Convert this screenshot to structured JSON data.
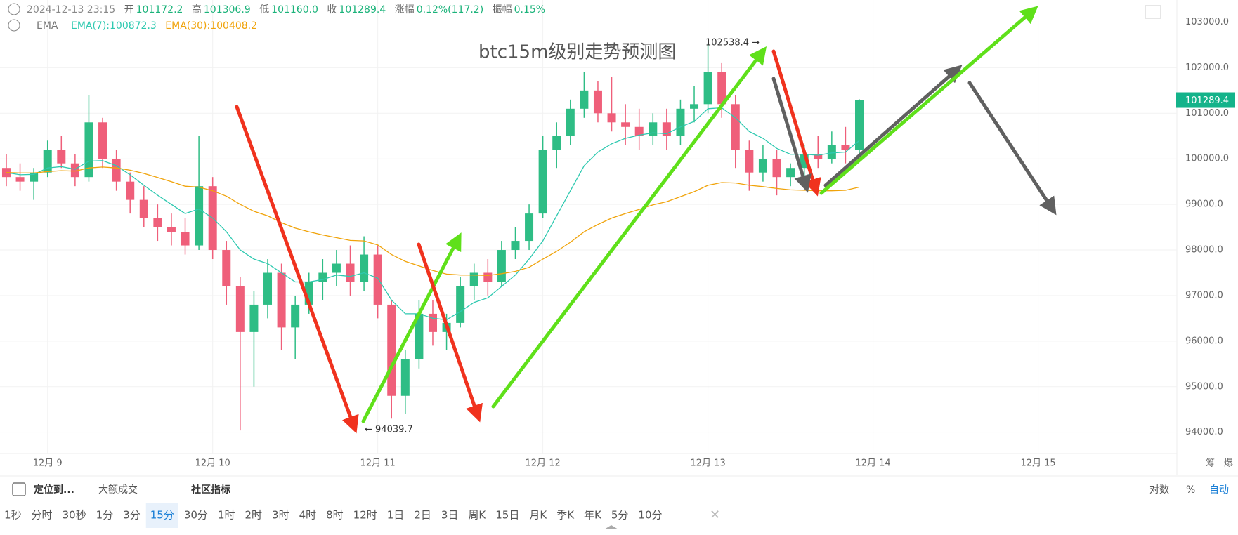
{
  "header": {
    "time": "2024-12-13 23:15",
    "open_label": "开",
    "open": "101172.2",
    "high_label": "高",
    "high": "101306.9",
    "low_label": "低",
    "low": "101160.0",
    "close_label": "收",
    "close": "101289.4",
    "change_label": "涨幅",
    "change": "0.12%(117.2)",
    "amplitude_label": "振幅",
    "amplitude": "0.15%",
    "indicator": "EMA"
  },
  "chart_data": {
    "type": "candlestick",
    "title": "btc15m级别走势预测图",
    "x": [
      "2024-12-08 18:00",
      "2024-12-08 20:00",
      "2024-12-08 22:00",
      "2024-12-09 00:00",
      "2024-12-09 02:00",
      "2024-12-09 04:00",
      "2024-12-09 06:00",
      "2024-12-09 08:00",
      "2024-12-09 10:00",
      "2024-12-09 12:00",
      "2024-12-09 14:00",
      "2024-12-09 16:00",
      "2024-12-09 18:00",
      "2024-12-09 20:00",
      "2024-12-09 22:00",
      "2024-12-10 00:00",
      "2024-12-10 02:00",
      "2024-12-10 04:00",
      "2024-12-10 06:00",
      "2024-12-10 08:00",
      "2024-12-10 10:00",
      "2024-12-10 12:00",
      "2024-12-10 14:00",
      "2024-12-10 16:00",
      "2024-12-10 18:00",
      "2024-12-10 20:00",
      "2024-12-10 22:00",
      "2024-12-11 00:00",
      "2024-12-11 02:00",
      "2024-12-11 04:00",
      "2024-12-11 06:00",
      "2024-12-11 08:00",
      "2024-12-11 10:00",
      "2024-12-11 12:00",
      "2024-12-11 14:00",
      "2024-12-11 16:00",
      "2024-12-11 18:00",
      "2024-12-11 20:00",
      "2024-12-11 22:00",
      "2024-12-12 00:00",
      "2024-12-12 02:00",
      "2024-12-12 04:00",
      "2024-12-12 06:00",
      "2024-12-12 08:00",
      "2024-12-12 10:00",
      "2024-12-12 12:00",
      "2024-12-12 14:00",
      "2024-12-12 16:00",
      "2024-12-12 18:00",
      "2024-12-12 20:00",
      "2024-12-12 22:00",
      "2024-12-13 00:00",
      "2024-12-13 02:00",
      "2024-12-13 04:00",
      "2024-12-13 06:00",
      "2024-12-13 08:00",
      "2024-12-13 10:00",
      "2024-12-13 12:00",
      "2024-12-13 14:00",
      "2024-12-13 16:00",
      "2024-12-13 18:00",
      "2024-12-13 20:00",
      "2024-12-13 22:00"
    ],
    "open": [
      99800,
      99600,
      99500,
      99700,
      100200,
      99900,
      99600,
      100800,
      100000,
      99500,
      99100,
      98700,
      98500,
      98400,
      98100,
      99400,
      98000,
      97200,
      96200,
      96800,
      97500,
      96300,
      96800,
      97300,
      97500,
      97700,
      97300,
      97900,
      96800,
      94800,
      95600,
      96600,
      96200,
      96400,
      97200,
      97500,
      97300,
      98000,
      98200,
      98800,
      100200,
      100500,
      101100,
      101500,
      101000,
      100800,
      100700,
      100500,
      100800,
      100500,
      101100,
      101200,
      101900,
      101200,
      100200,
      99700,
      100000,
      99600,
      99800,
      100100,
      100000,
      100300,
      100200
    ],
    "high": [
      100100,
      99900,
      99800,
      100400,
      100500,
      100100,
      101400,
      100900,
      100200,
      99700,
      99400,
      99000,
      98800,
      98700,
      100500,
      99600,
      98200,
      97400,
      97100,
      97800,
      97700,
      97000,
      97500,
      97800,
      98000,
      98100,
      98300,
      98100,
      96900,
      95800,
      96900,
      96900,
      96600,
      97400,
      97700,
      97800,
      98200,
      98500,
      99000,
      100500,
      100800,
      101300,
      101900,
      101700,
      101800,
      101200,
      101100,
      101000,
      101100,
      101300,
      101600,
      102538.4,
      102100,
      101400,
      100400,
      100300,
      100200,
      99900,
      100300,
      100500,
      100600,
      100700,
      101306.9
    ],
    "low": [
      99400,
      99300,
      99100,
      99600,
      99800,
      99400,
      99500,
      99800,
      99300,
      98800,
      98500,
      98200,
      98100,
      97900,
      98000,
      97800,
      96800,
      94039.7,
      95000,
      96500,
      95800,
      95600,
      96600,
      96900,
      97200,
      97000,
      97100,
      96500,
      94300,
      94400,
      95400,
      95900,
      95800,
      96300,
      96900,
      97000,
      97200,
      97800,
      98000,
      98700,
      99800,
      100300,
      100900,
      100800,
      100600,
      100300,
      100200,
      100300,
      100200,
      100300,
      100800,
      101000,
      100900,
      99800,
      99300,
      99500,
      99200,
      99400,
      99600,
      99800,
      99900,
      99900,
      100100
    ],
    "close": [
      99600,
      99500,
      99700,
      100200,
      99900,
      99600,
      100800,
      100000,
      99500,
      99100,
      98700,
      98500,
      98400,
      98100,
      99400,
      98000,
      97200,
      96200,
      96800,
      97500,
      96300,
      96800,
      97300,
      97500,
      97700,
      97300,
      97900,
      96800,
      94800,
      95600,
      96600,
      96200,
      96400,
      97200,
      97500,
      97300,
      98000,
      98200,
      98800,
      100200,
      100500,
      101100,
      101500,
      101000,
      100800,
      100700,
      100500,
      100800,
      100500,
      101100,
      101200,
      101900,
      101200,
      100200,
      99700,
      100000,
      99600,
      99800,
      100100,
      100000,
      100300,
      100200,
      101289.4
    ],
    "up_color": "#2ebd85",
    "down_color": "#ef5f7a",
    "series": [
      {
        "name": "EMA(7):100872.3",
        "color": "#2ec9b0",
        "values": [
          99700,
          99650,
          99660,
          99800,
          99830,
          99770,
          99950,
          99960,
          99850,
          99650,
          99420,
          99200,
          99000,
          98800,
          98900,
          98700,
          98400,
          98000,
          97800,
          97700,
          97500,
          97300,
          97300,
          97350,
          97450,
          97420,
          97500,
          97380,
          96900,
          96600,
          96600,
          96500,
          96470,
          96650,
          96850,
          96950,
          97200,
          97450,
          97800,
          98200,
          98750,
          99300,
          99850,
          100150,
          100330,
          100450,
          100520,
          100570,
          100550,
          100700,
          100820,
          101100,
          101120,
          100900,
          100600,
          100450,
          100230,
          100100,
          100100,
          100080,
          100130,
          100150,
          100400
        ]
      },
      {
        "name": "EMA(30):100408.2",
        "color": "#f0a30a",
        "values": [
          99700,
          99690,
          99690,
          99720,
          99740,
          99730,
          99800,
          99820,
          99800,
          99750,
          99680,
          99590,
          99500,
          99400,
          99380,
          99300,
          99180,
          99000,
          98850,
          98750,
          98600,
          98480,
          98400,
          98330,
          98270,
          98210,
          98200,
          98110,
          97900,
          97750,
          97650,
          97550,
          97470,
          97450,
          97450,
          97440,
          97480,
          97530,
          97620,
          97800,
          97970,
          98170,
          98400,
          98560,
          98700,
          98800,
          98890,
          98990,
          99060,
          99170,
          99280,
          99420,
          99480,
          99470,
          99420,
          99390,
          99350,
          99320,
          99310,
          99300,
          99300,
          99310,
          99380
        ]
      }
    ],
    "last_price": 101289.4,
    "annotations": [
      "102538.4 →",
      "← 94039.7"
    ],
    "xlim": [
      "2024-12-08 17:05",
      "2024-12-15 20:10"
    ],
    "xticks": [
      {
        "value": "2024-12-09 00:00",
        "label": "12月 9"
      },
      {
        "value": "2024-12-10 00:00",
        "label": "12月 10"
      },
      {
        "value": "2024-12-11 00:00",
        "label": "12月 11"
      },
      {
        "value": "2024-12-12 00:00",
        "label": "12月 12"
      },
      {
        "value": "2024-12-13 00:00",
        "label": "12月 13"
      },
      {
        "value": "2024-12-14 00:00",
        "label": "12月 14"
      },
      {
        "value": "2024-12-15 00:00",
        "label": "12月 15"
      }
    ],
    "ylim": [
      93533,
      103485
    ],
    "yticks": [
      {
        "value": 94000,
        "label": "94000.0"
      },
      {
        "value": 95000,
        "label": "95000.0"
      },
      {
        "value": 96000,
        "label": "96000.0"
      },
      {
        "value": 97000,
        "label": "97000.0"
      },
      {
        "value": 98000,
        "label": "98000.0"
      },
      {
        "value": 99000,
        "label": "99000.0"
      },
      {
        "value": 100000,
        "label": "100000.0"
      },
      {
        "value": 101000,
        "label": "101000.0"
      },
      {
        "value": 102000,
        "label": "102000.0"
      },
      {
        "value": 103000,
        "label": "103000.0"
      }
    ],
    "grid": true,
    "log_scale": false
  },
  "axis_extra": [
    "筹",
    "爆"
  ],
  "toolbar": {
    "locate": "定位到...",
    "big_trades": "大额成交",
    "indicators": "社区指标",
    "log": "对数",
    "percent": "%",
    "auto": "自动",
    "intervals": [
      "1秒",
      "分时",
      "30秒",
      "1分",
      "3分",
      "15分",
      "30分",
      "1时",
      "2时",
      "3时",
      "4时",
      "8时",
      "12时",
      "1日",
      "2日",
      "3日",
      "周K",
      "15日",
      "月K",
      "季K",
      "年K",
      "5分",
      "10分"
    ],
    "selected": "15分"
  }
}
